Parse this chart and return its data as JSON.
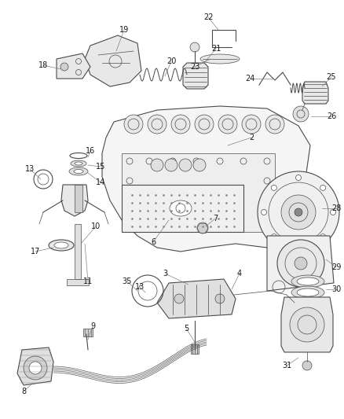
{
  "bg_color": "#ffffff",
  "line_color": "#4a4a4a",
  "label_color": "#1a1a1a",
  "fig_width": 4.38,
  "fig_height": 5.33,
  "dpi": 100,
  "font_size": 7.0
}
